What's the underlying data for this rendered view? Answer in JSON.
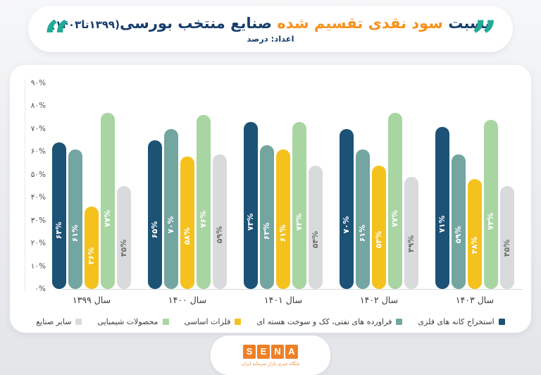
{
  "header": {
    "title_parts": [
      {
        "text": "نسبت ",
        "color": "#173e6e",
        "small": false
      },
      {
        "text": "سود نقدی تقسیم شده ",
        "color": "#f6921e",
        "small": false
      },
      {
        "text": "صنایع منتخب بورسی",
        "color": "#173e6e",
        "small": false
      },
      {
        "text": "(۱۳۹۹تا۱۴۰۳)",
        "color": "#173e6e",
        "small": true
      }
    ],
    "subtitle": "اعداد: درصد",
    "subtitle_color": "#173e6e",
    "quote_color": "#22ab97",
    "quote_open_glyph": "“",
    "quote_close_glyph": "”"
  },
  "chart_data": {
    "type": "bar",
    "title": "نسبت سود نقدی تقسیم شده صنایع منتخب بورسی(۱۳۹۹تا۱۴۰۳)",
    "units_note": "اعداد: درصد",
    "categories": [
      "سال ۱۳۹۹",
      "سال ۱۴۰۰",
      "سال ۱۴۰۱",
      "سال ۱۴۰۲",
      "سال ۱۴۰۳"
    ],
    "series": [
      {
        "name": "استخراج کانه های فلزی",
        "color": "#1b5276",
        "label_color": "#ffffff",
        "values": [
          64,
          65,
          73,
          70,
          71
        ],
        "value_labels": [
          "۶۴%",
          "۶۵%",
          "۷۳%",
          "۷۰%",
          "۷۱%"
        ]
      },
      {
        "name": "فراورده های نفتی، کک و سوخت هسته ای",
        "color": "#73a5a1",
        "label_color": "#ffffff",
        "values": [
          61,
          70,
          63,
          61,
          59
        ],
        "value_labels": [
          "۶۱%",
          "۷۰%",
          "۶۳%",
          "۶۱%",
          "۵۹%"
        ]
      },
      {
        "name": "فلزات اساسی",
        "color": "#f5c21d",
        "label_color": "#ffffff",
        "values": [
          36,
          58,
          61,
          54,
          48
        ],
        "value_labels": [
          "۳۶%",
          "۵۸%",
          "۶۱%",
          "۵۴%",
          "۴۸%"
        ]
      },
      {
        "name": "محصولات شیمیایی",
        "color": "#a8d5a1",
        "label_color": "#ffffff",
        "values": [
          77,
          76,
          73,
          77,
          74
        ],
        "value_labels": [
          "۷۷%",
          "۷۶%",
          "۷۳%",
          "۷۷%",
          "۷۴%"
        ]
      },
      {
        "name": "سایر صنایع",
        "color": "#d9dadc",
        "label_color": "#6e6e6e",
        "values": [
          45,
          59,
          54,
          49,
          45
        ],
        "value_labels": [
          "۴۵%",
          "۵۹%",
          "۵۴%",
          "۴۹%",
          "۴۵%"
        ]
      }
    ],
    "ylim": [
      0,
      90
    ],
    "ytick_values": [
      0,
      10,
      20,
      30,
      40,
      50,
      60,
      70,
      80,
      90
    ],
    "ytick_labels": [
      "۰%",
      "۱۰%",
      "۲۰%",
      "۳۰%",
      "۴۰%",
      "۵۰%",
      "۶۰%",
      "۷۰%",
      "۸۰%",
      "۹۰%"
    ],
    "grid": false,
    "legend_position": "bottom"
  },
  "footer": {
    "logo_letters": [
      "S",
      "E",
      "N",
      "A"
    ],
    "logo_color": "#ee8026",
    "tagline": "پایگاه خبری بازار سرمایه ایران",
    "tagline_color": "#ef8e3f"
  }
}
